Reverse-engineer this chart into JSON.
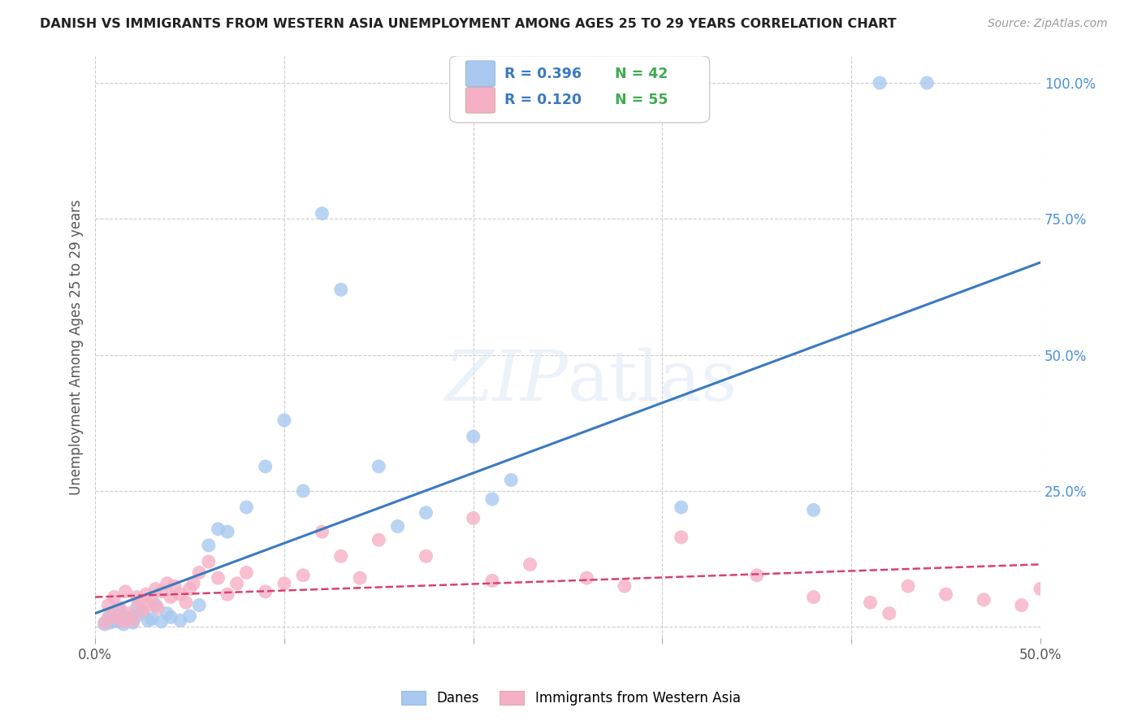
{
  "title": "DANISH VS IMMIGRANTS FROM WESTERN ASIA UNEMPLOYMENT AMONG AGES 25 TO 29 YEARS CORRELATION CHART",
  "source": "Source: ZipAtlas.com",
  "ylabel": "Unemployment Among Ages 25 to 29 years",
  "xlim": [
    0.0,
    0.5
  ],
  "ylim": [
    -0.02,
    1.05
  ],
  "blue_color": "#a8c8f0",
  "blue_color_line": "#3a7abf",
  "pink_color": "#f5b0c5",
  "pink_color_line": "#d94070",
  "background_color": "#ffffff",
  "grid_color": "#cccccc",
  "legend_R1": "R = 0.396",
  "legend_N1": "N = 42",
  "legend_R2": "R = 0.120",
  "legend_N2": "N = 55",
  "legend_label1": "Danes",
  "legend_label2": "Immigrants from Western Asia",
  "watermark": "ZIPatlas",
  "blue_line_x": [
    0.0,
    0.5
  ],
  "blue_line_y": [
    0.025,
    0.67
  ],
  "pink_line_x": [
    0.0,
    0.5
  ],
  "pink_line_y": [
    0.055,
    0.115
  ],
  "blue_x": [
    0.005,
    0.007,
    0.008,
    0.01,
    0.01,
    0.012,
    0.013,
    0.015,
    0.015,
    0.018,
    0.02,
    0.022,
    0.022,
    0.025,
    0.028,
    0.03,
    0.032,
    0.035,
    0.038,
    0.04,
    0.045,
    0.05,
    0.055,
    0.06,
    0.065,
    0.07,
    0.08,
    0.09,
    0.1,
    0.11,
    0.12,
    0.13,
    0.15,
    0.16,
    0.175,
    0.2,
    0.21,
    0.22,
    0.31,
    0.38,
    0.415,
    0.44
  ],
  "blue_y": [
    0.005,
    0.018,
    0.008,
    0.012,
    0.025,
    0.01,
    0.03,
    0.005,
    0.022,
    0.015,
    0.008,
    0.02,
    0.035,
    0.028,
    0.012,
    0.015,
    0.04,
    0.01,
    0.025,
    0.018,
    0.012,
    0.02,
    0.04,
    0.15,
    0.18,
    0.175,
    0.22,
    0.295,
    0.38,
    0.25,
    0.76,
    0.62,
    0.295,
    0.185,
    0.21,
    0.35,
    0.235,
    0.27,
    0.22,
    0.215,
    1.0,
    1.0
  ],
  "pink_x": [
    0.005,
    0.007,
    0.008,
    0.01,
    0.012,
    0.013,
    0.015,
    0.016,
    0.018,
    0.02,
    0.022,
    0.023,
    0.025,
    0.027,
    0.028,
    0.03,
    0.032,
    0.033,
    0.035,
    0.038,
    0.04,
    0.042,
    0.045,
    0.048,
    0.05,
    0.052,
    0.055,
    0.06,
    0.065,
    0.07,
    0.075,
    0.08,
    0.09,
    0.1,
    0.11,
    0.12,
    0.13,
    0.14,
    0.15,
    0.175,
    0.2,
    0.21,
    0.23,
    0.26,
    0.28,
    0.31,
    0.35,
    0.38,
    0.41,
    0.43,
    0.45,
    0.47,
    0.49,
    0.5,
    0.42
  ],
  "pink_y": [
    0.008,
    0.04,
    0.02,
    0.055,
    0.015,
    0.035,
    0.01,
    0.065,
    0.025,
    0.012,
    0.055,
    0.045,
    0.03,
    0.06,
    0.04,
    0.05,
    0.07,
    0.035,
    0.065,
    0.08,
    0.055,
    0.075,
    0.06,
    0.045,
    0.07,
    0.08,
    0.1,
    0.12,
    0.09,
    0.06,
    0.08,
    0.1,
    0.065,
    0.08,
    0.095,
    0.175,
    0.13,
    0.09,
    0.16,
    0.13,
    0.2,
    0.085,
    0.115,
    0.09,
    0.075,
    0.165,
    0.095,
    0.055,
    0.045,
    0.075,
    0.06,
    0.05,
    0.04,
    0.07,
    0.025
  ]
}
